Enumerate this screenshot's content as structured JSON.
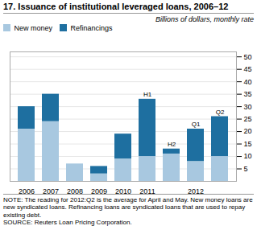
{
  "chart_data": {
    "type": "bar",
    "stacked": true,
    "title": "17.   Issuance of institutional leveraged loans, 2006–12",
    "subtitle": "Billions of dollars, monthly rate",
    "categories": [
      "2006",
      "2007",
      "2008",
      "2009",
      "2010",
      "2011",
      null,
      "2012",
      null
    ],
    "annotations": [
      null,
      null,
      null,
      null,
      null,
      "H1",
      "H2",
      "Q1",
      "Q2"
    ],
    "series": [
      {
        "name": "New money",
        "color": "#a8c8e0",
        "values": [
          21,
          24,
          7,
          3,
          9,
          10,
          11,
          8,
          10
        ]
      },
      {
        "name": "Refinancings",
        "color": "#1e6fa0",
        "values": [
          9,
          11,
          0,
          3,
          10,
          23,
          2,
          13,
          16
        ]
      }
    ],
    "ylim": [
      0,
      52
    ],
    "yticks": [
      5,
      10,
      15,
      20,
      25,
      30,
      35,
      40,
      45,
      50
    ],
    "grid": true,
    "legend": "upper left",
    "notes": [
      "NOTE:  The reading for 2012:Q2 is the average for April and May. New money loans are new syndicated loans. Refinancing loans are syndicated loans that are used to repay existing debt.",
      "SOURCE:  Reuters Loan Pricing Corporation."
    ]
  }
}
